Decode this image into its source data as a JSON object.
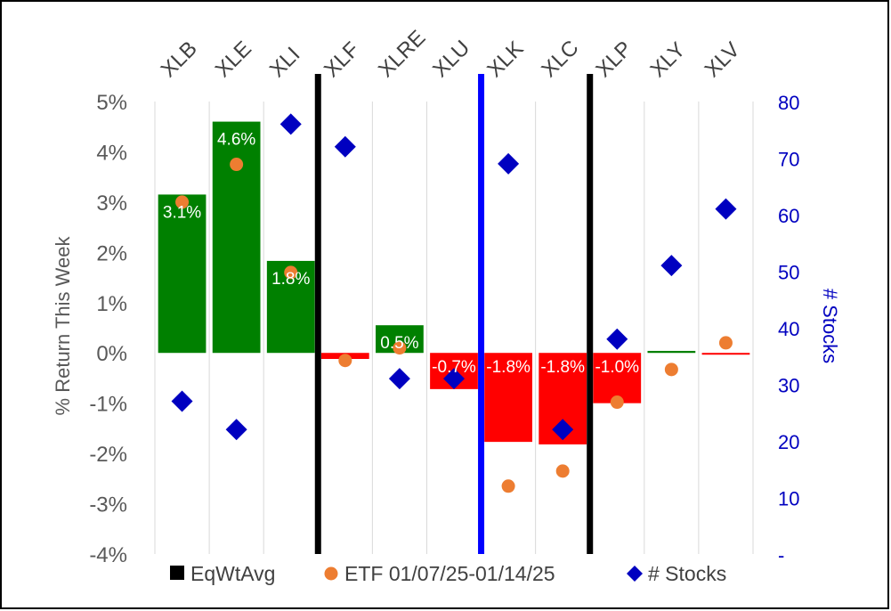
{
  "chart_data": {
    "type": "bar",
    "categories": [
      "XLB",
      "XLE",
      "XLI",
      "XLF",
      "XLRE",
      "XLU",
      "XLK",
      "XLC",
      "XLP",
      "XLY",
      "XLV"
    ],
    "ylabel": "% Return This Week",
    "y2label": "# Stocks",
    "ylim": [
      -4,
      5
    ],
    "y2lim": [
      0,
      80
    ],
    "y_ticks": [
      "-4%",
      "-3%",
      "-2%",
      "-1%",
      "0%",
      "1%",
      "2%",
      "3%",
      "4%",
      "5%"
    ],
    "y2_ticks": [
      "-",
      "10",
      "20",
      "30",
      "40",
      "50",
      "60",
      "70",
      "80"
    ],
    "series": [
      {
        "name": "EqWtAvg",
        "kind": "bar",
        "values": [
          3.15,
          4.6,
          1.83,
          -0.12,
          0.55,
          -0.72,
          -1.77,
          -1.82,
          -1.0,
          0.04,
          -0.03
        ],
        "labels": [
          "3.1%",
          "4.6%",
          "1.8%",
          "",
          "0.5%",
          "-0.7%",
          "-1.8%",
          "-1.8%",
          "-1.0%",
          "",
          ""
        ]
      },
      {
        "name": "ETF 01/07/25-01/14/25",
        "kind": "dot",
        "values": [
          3.0,
          3.75,
          1.6,
          -0.15,
          0.1,
          -0.5,
          -2.65,
          -2.35,
          -0.98,
          -0.33,
          0.2
        ]
      },
      {
        "name": "# Stocks",
        "kind": "diamond",
        "axis": "y2",
        "values": [
          27,
          22,
          76,
          72,
          31,
          31,
          69,
          22,
          38,
          51,
          61
        ]
      }
    ],
    "dividers": [
      {
        "after_index": 2,
        "color": "#000000"
      },
      {
        "after_index": 5,
        "color": "#0000ff"
      },
      {
        "after_index": 7,
        "color": "#000000"
      }
    ],
    "colors": {
      "positive": "#008000",
      "negative": "#ff0000",
      "dot": "#ed7d31",
      "diamond": "#0000c0",
      "divider_mid": "#0000ff",
      "y2_text": "#0000c0"
    },
    "grid": "vertical-category"
  }
}
